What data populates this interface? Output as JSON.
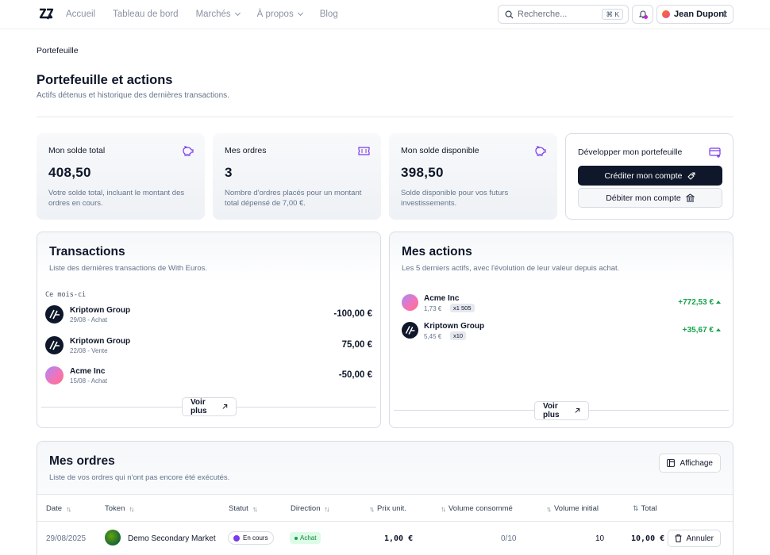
{
  "nav": {
    "links": [
      "Accueil",
      "Tableau de bord",
      "Marchés",
      "À propos",
      "Blog"
    ],
    "search_placeholder": "Recherche...",
    "search_shortcut": "⌘ K",
    "user_name": "Jean Dupont"
  },
  "breadcrumb": "Portefeuille",
  "page": {
    "title": "Portefeuille et actions",
    "subtitle": "Actifs détenus et historique des dernières transactions."
  },
  "stats": [
    {
      "label": "Mon solde total",
      "value": "408,50",
      "desc": "Votre solde total, incluant le montant des ordres en cours.",
      "icon": "piggy-bank-icon"
    },
    {
      "label": "Mes ordres",
      "value": "3",
      "desc": "Nombre d'ordres placés pour un montant total dépensé de 7,00 €.",
      "icon": "ticket-icon"
    },
    {
      "label": "Mon solde disponible",
      "value": "398,50",
      "desc": "Solde disponible pour vos futurs investissements.",
      "icon": "piggy-bank-icon"
    }
  ],
  "develop": {
    "label": "Développer mon portefeuille",
    "credit_label": "Créditer mon compte",
    "debit_label": "Débiter mon compte"
  },
  "transactions": {
    "title": "Transactions",
    "subtitle": "Liste des dernières transactions de With Euros.",
    "period": "Ce mois-ci",
    "items": [
      {
        "name": "Kriptown Group",
        "sub": "29/08 - Achat",
        "amount": "-100,00 €",
        "logo": "kriptown"
      },
      {
        "name": "Kriptown Group",
        "sub": "22/08 - Vente",
        "amount": "75,00 €",
        "logo": "kriptown"
      },
      {
        "name": "Acme Inc",
        "sub": "15/08 - Achat",
        "amount": "-50,00 €",
        "logo": "acme"
      }
    ],
    "more_label": "Voir plus"
  },
  "actions": {
    "title": "Mes actions",
    "subtitle": "Les 5 derniers actifs, avec l'évolution de leur valeur depuis achat.",
    "items": [
      {
        "name": "Acme Inc",
        "price": "1,73 €",
        "qty": "x1 505",
        "gain": "+772,53 €",
        "logo": "acme"
      },
      {
        "name": "Kriptown Group",
        "price": "5,45 €",
        "qty": "x10",
        "gain": "+35,67 €",
        "logo": "kriptown"
      }
    ],
    "more_label": "Voir plus"
  },
  "orders": {
    "title": "Mes ordres",
    "subtitle": "Liste de vos ordres qui n'ont pas encore été exécutés.",
    "display_label": "Affichage",
    "columns": [
      "Date",
      "Token",
      "Statut",
      "Direction",
      "Prix unit.",
      "Volume consommé",
      "Volume initial",
      "Total"
    ],
    "rows": [
      {
        "date": "29/08/2025",
        "token": "Demo Secondary Market",
        "status": "En cours",
        "direction": "Achat",
        "unit_price": "1,00 €",
        "consumed": "0/10",
        "initial": "10",
        "total": "10,00 €",
        "cancel_label": "Annuler"
      }
    ]
  },
  "colors": {
    "accent": "#7c3aed",
    "dark": "#0f172a",
    "gain": "#16a34a"
  }
}
